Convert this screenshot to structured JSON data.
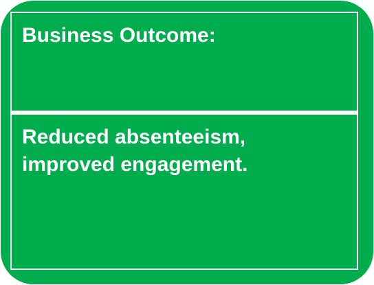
{
  "card": {
    "heading": "Business Outcome:",
    "body_line1": "Reduced absenteeism,",
    "body_line2": "improved engagement."
  },
  "colors": {
    "background": "#00AD4D",
    "text": "#FFFFFF",
    "border": "#FFFFFF"
  }
}
